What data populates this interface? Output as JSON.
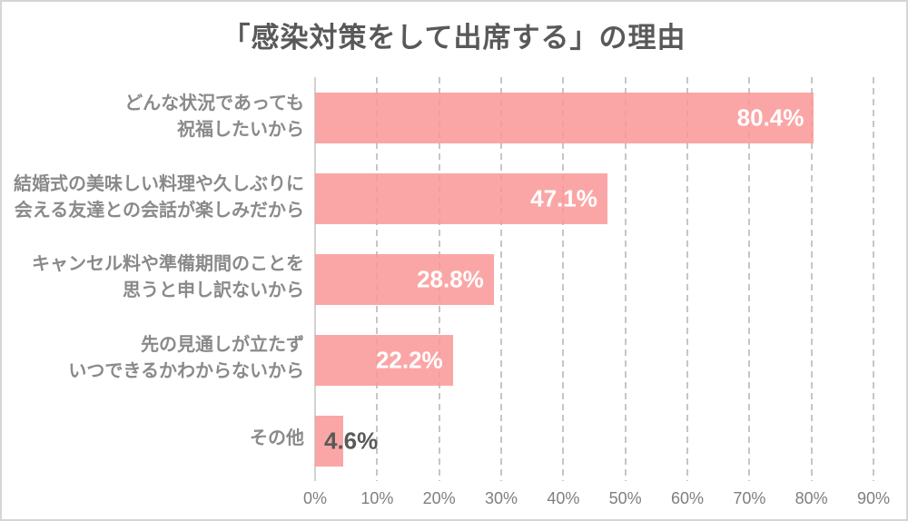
{
  "chart_data": {
    "type": "bar",
    "orientation": "horizontal",
    "title": "「感染対策をして出席する」の理由",
    "categories": [
      "どんな状況であっても\n祝福したいから",
      "結婚式の美味しい料理や久しぶりに\n会える友達との会話が楽しみだから",
      "キャンセル料や準備期間のことを\n思うと申し訳ないから",
      "先の見通しが立たず\nいつできるかわからないから",
      "その他"
    ],
    "values": [
      80.4,
      47.1,
      28.8,
      22.2,
      4.6
    ],
    "value_labels": [
      "80.4%",
      "47.1%",
      "28.8%",
      "22.2%",
      "4.6%"
    ],
    "xlabel": "",
    "ylabel": "",
    "xlim": [
      0,
      90
    ],
    "tick_step": 10,
    "tick_labels": [
      "0%",
      "10%",
      "20%",
      "30%",
      "40%",
      "50%",
      "60%",
      "70%",
      "80%",
      "90%"
    ],
    "grid": "vertical-dashed",
    "legend": "none",
    "colors": {
      "bar_color": "#faa6a6",
      "bar_fill": "rgba(250,150,150,0.85)",
      "grid_color": "#c6c6c6",
      "axis_color": "#d2d2d2",
      "title_color": "#595959",
      "category_color": "#8a8a8a",
      "tick_color": "#7f7f7f",
      "value_inside_color": "#ffffff",
      "value_outside_color": "#595959",
      "frame_border_color": "#d6d6d6",
      "background": "#ffffff"
    }
  }
}
